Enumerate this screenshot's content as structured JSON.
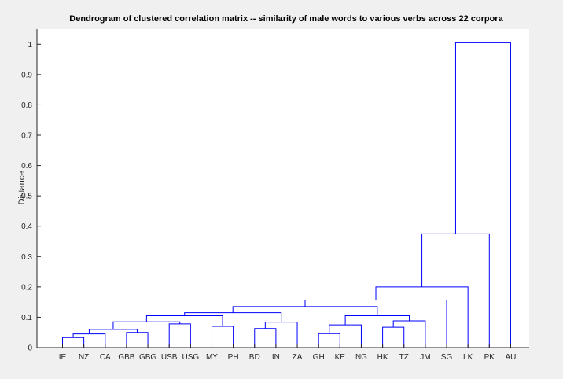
{
  "chart_data": {
    "type": "dendrogram",
    "title": "Dendrogram of clustered correlation matrix -- similarity of male words to various verbs across 22 corpora",
    "xlabel": "",
    "ylabel": "Distance",
    "ylim": [
      0,
      1.05
    ],
    "yticks": [
      "0",
      "0.1",
      "0.2",
      "0.3",
      "0.4",
      "0.5",
      "0.6",
      "0.7",
      "0.8",
      "0.9",
      "1"
    ],
    "grid": false,
    "leaves": [
      "IE",
      "NZ",
      "CA",
      "GBB",
      "GBG",
      "USB",
      "USG",
      "MY",
      "PH",
      "BD",
      "IN",
      "ZA",
      "GH",
      "KE",
      "NG",
      "HK",
      "TZ",
      "JM",
      "SG",
      "LK",
      "PK",
      "AU"
    ],
    "merges": [
      {
        "left": "IE",
        "right": "NZ",
        "height": 0.033
      },
      {
        "left": "IE-NZ",
        "right": "CA",
        "height": 0.045
      },
      {
        "left": "GBB",
        "right": "GBG",
        "height": 0.05
      },
      {
        "left": "IE-NZ-CA",
        "right": "GBB-GBG",
        "height": 0.06
      },
      {
        "left": "USB",
        "right": "USG",
        "height": 0.078
      },
      {
        "left": "IE..GBG",
        "right": "USB-USG",
        "height": 0.085
      },
      {
        "left": "MY",
        "right": "PH",
        "height": 0.07
      },
      {
        "left": "IE..USG",
        "right": "MY-PH",
        "height": 0.105
      },
      {
        "left": "BD",
        "right": "IN",
        "height": 0.063
      },
      {
        "left": "BD-IN",
        "right": "ZA",
        "height": 0.084
      },
      {
        "left": "IE..PH",
        "right": "BD-IN-ZA",
        "height": 0.115
      },
      {
        "left": "GH",
        "right": "KE",
        "height": 0.046
      },
      {
        "left": "GH-KE",
        "right": "NG",
        "height": 0.075
      },
      {
        "left": "HK",
        "right": "TZ",
        "height": 0.067
      },
      {
        "left": "HK-TZ",
        "right": "JM",
        "height": 0.088
      },
      {
        "left": "GH-KE-NG",
        "right": "HK-TZ-JM",
        "height": 0.105
      },
      {
        "left": "IE..ZA",
        "right": "GH..JM",
        "height": 0.135
      },
      {
        "left": "IE..JM",
        "right": "SG",
        "height": 0.157
      },
      {
        "left": "IE..SG",
        "right": "LK",
        "height": 0.2
      },
      {
        "left": "IE..LK",
        "right": "PK",
        "height": 0.375
      },
      {
        "left": "IE..PK",
        "right": "AU",
        "height": 1.005
      }
    ],
    "line_color": "#0000ff"
  }
}
